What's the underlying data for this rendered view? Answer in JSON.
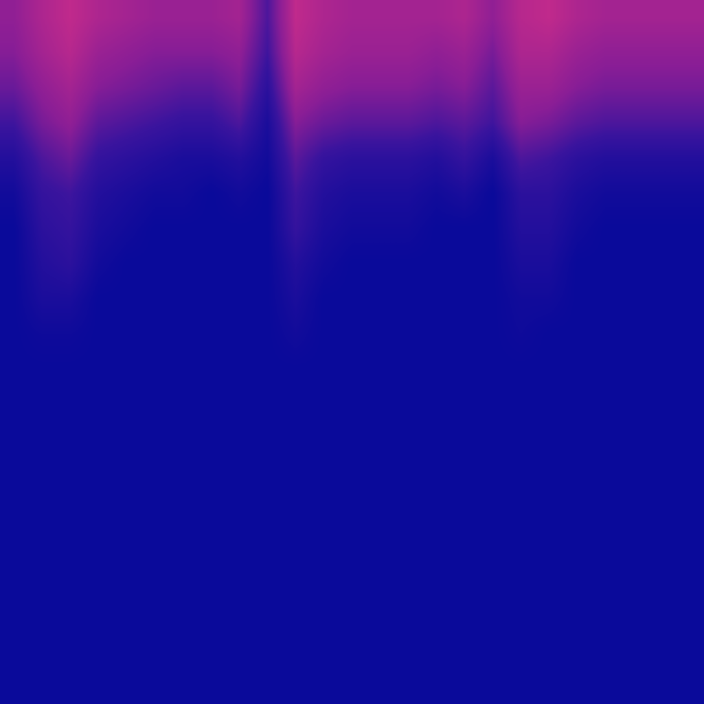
{
  "chart_data": {
    "type": "heatmap",
    "tick_labels": false,
    "grid": false,
    "cells": [
      [
        0.6,
        0.75,
        0.85,
        0.75,
        0.7,
        0.65,
        0.65,
        0.65,
        0.7,
        0.35,
        0.85,
        0.75,
        0.7,
        0.7,
        0.7,
        0.7,
        0.75,
        0.6,
        0.8,
        0.85,
        0.75,
        0.7,
        0.7,
        0.7,
        0.7
      ],
      [
        0.55,
        0.7,
        0.8,
        0.65,
        0.6,
        0.55,
        0.55,
        0.55,
        0.6,
        0.3,
        0.8,
        0.7,
        0.65,
        0.65,
        0.65,
        0.6,
        0.65,
        0.5,
        0.75,
        0.75,
        0.65,
        0.6,
        0.6,
        0.6,
        0.6
      ],
      [
        0.45,
        0.6,
        0.7,
        0.55,
        0.5,
        0.45,
        0.4,
        0.4,
        0.5,
        0.2,
        0.7,
        0.6,
        0.55,
        0.55,
        0.55,
        0.5,
        0.55,
        0.4,
        0.65,
        0.65,
        0.55,
        0.5,
        0.5,
        0.5,
        0.5
      ],
      [
        0.3,
        0.5,
        0.6,
        0.4,
        0.35,
        0.3,
        0.25,
        0.25,
        0.35,
        0.1,
        0.55,
        0.45,
        0.4,
        0.4,
        0.4,
        0.35,
        0.4,
        0.3,
        0.55,
        0.5,
        0.4,
        0.35,
        0.35,
        0.35,
        0.35
      ],
      [
        0.15,
        0.35,
        0.45,
        0.25,
        0.2,
        0.15,
        0.1,
        0.1,
        0.15,
        0.05,
        0.4,
        0.25,
        0.2,
        0.2,
        0.2,
        0.15,
        0.25,
        0.1,
        0.35,
        0.3,
        0.2,
        0.15,
        0.15,
        0.15,
        0.15
      ],
      [
        0.05,
        0.25,
        0.3,
        0.15,
        0.1,
        0.05,
        0.05,
        0,
        0.05,
        0,
        0.3,
        0.15,
        0.1,
        0.1,
        0.1,
        0.05,
        0.1,
        0,
        0.2,
        0.2,
        0.1,
        0.05,
        0.05,
        0.05,
        0.05
      ],
      [
        0,
        0.2,
        0.25,
        0.1,
        0.05,
        0,
        0,
        0,
        0,
        0,
        0.25,
        0.1,
        0.05,
        0.05,
        0.05,
        0,
        0,
        0,
        0.15,
        0.15,
        0.05,
        0,
        0,
        0,
        0
      ],
      [
        0,
        0.15,
        0.2,
        0.05,
        0,
        0,
        0,
        0,
        0,
        0,
        0.15,
        0.05,
        0,
        0,
        0,
        0,
        0,
        0,
        0.1,
        0.1,
        0,
        0,
        0,
        0,
        0
      ],
      [
        0,
        0.1,
        0.1,
        0,
        0,
        0,
        0,
        0,
        0,
        0,
        0.1,
        0,
        0,
        0,
        0,
        0,
        0,
        0,
        0.05,
        0.05,
        0,
        0,
        0,
        0,
        0
      ],
      [
        0,
        0.03,
        0.03,
        0,
        0,
        0,
        0,
        0,
        0,
        0,
        0.05,
        0,
        0,
        0,
        0,
        0,
        0,
        0,
        0.03,
        0,
        0,
        0,
        0,
        0,
        0
      ],
      [
        0,
        0,
        0,
        0,
        0,
        0,
        0,
        0,
        0,
        0,
        0,
        0,
        0,
        0,
        0,
        0,
        0,
        0,
        0,
        0,
        0,
        0,
        0,
        0,
        0
      ],
      [
        0,
        0,
        0,
        0,
        0,
        0,
        0,
        0,
        0,
        0,
        0,
        0,
        0,
        0,
        0,
        0,
        0,
        0,
        0,
        0,
        0,
        0,
        0,
        0,
        0
      ],
      [
        0,
        0,
        0,
        0,
        0,
        0,
        0,
        0,
        0,
        0,
        0,
        0,
        0,
        0,
        0,
        0,
        0,
        0,
        0,
        0,
        0,
        0,
        0,
        0,
        0
      ],
      [
        0,
        0,
        0,
        0,
        0,
        0,
        0,
        0,
        0,
        0,
        0,
        0,
        0,
        0,
        0,
        0,
        0,
        0,
        0,
        0,
        0,
        0,
        0,
        0,
        0
      ],
      [
        0,
        0,
        0,
        0,
        0,
        0,
        0,
        0,
        0,
        0,
        0,
        0,
        0,
        0,
        0,
        0,
        0,
        0,
        0,
        0,
        0,
        0,
        0,
        0,
        0
      ],
      [
        0,
        0,
        0,
        0,
        0,
        0,
        0,
        0,
        0,
        0,
        0,
        0,
        0,
        0,
        0,
        0,
        0,
        0,
        0,
        0,
        0,
        0,
        0,
        0,
        0
      ],
      [
        0,
        0,
        0,
        0,
        0,
        0,
        0,
        0,
        0,
        0,
        0,
        0,
        0,
        0,
        0,
        0,
        0,
        0,
        0,
        0,
        0,
        0,
        0,
        0,
        0
      ],
      [
        0,
        0,
        0,
        0,
        0,
        0,
        0,
        0,
        0,
        0,
        0,
        0,
        0,
        0,
        0,
        0,
        0,
        0,
        0,
        0,
        0,
        0,
        0,
        0,
        0
      ],
      [
        0,
        0,
        0,
        0,
        0,
        0,
        0,
        0,
        0,
        0,
        0,
        0,
        0,
        0,
        0,
        0,
        0,
        0,
        0,
        0,
        0,
        0,
        0,
        0,
        0
      ],
      [
        0,
        0,
        0,
        0,
        0,
        0,
        0,
        0,
        0,
        0,
        0,
        0,
        0,
        0,
        0,
        0,
        0,
        0,
        0,
        0,
        0,
        0,
        0,
        0,
        0
      ]
    ]
  }
}
